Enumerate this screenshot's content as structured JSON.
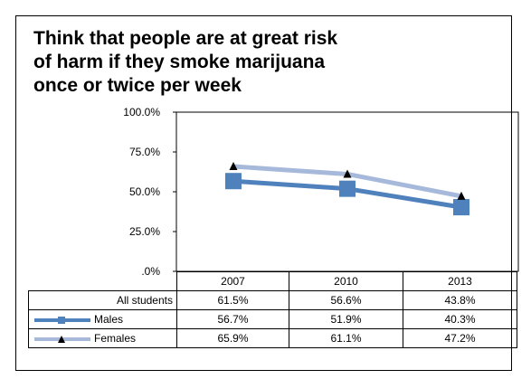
{
  "chart_data": {
    "type": "line",
    "title": "Think that people are at great risk\nof harm if they smoke marijuana\nonce or twice per week",
    "categories": [
      "2007",
      "2010",
      "2013"
    ],
    "y_ticks": [
      "100.0%",
      "75.0%",
      "50.0%",
      "25.0%",
      ".0%"
    ],
    "ylim": [
      0,
      100
    ],
    "grid": false,
    "table": {
      "rows": [
        {
          "label": "All students",
          "values": [
            "61.5%",
            "56.6%",
            "43.8%"
          ]
        },
        {
          "label": "Males",
          "values": [
            "56.7%",
            "51.9%",
            "40.3%"
          ]
        },
        {
          "label": "Females",
          "values": [
            "65.9%",
            "61.1%",
            "47.2%"
          ]
        }
      ]
    },
    "series": [
      {
        "name": "Males",
        "values": [
          56.7,
          51.9,
          40.3
        ],
        "color": "#4F81BD",
        "marker": "square"
      },
      {
        "name": "Females",
        "values": [
          65.9,
          61.1,
          47.2
        ],
        "color": "#A6B9DA",
        "marker": "triangle"
      }
    ]
  }
}
